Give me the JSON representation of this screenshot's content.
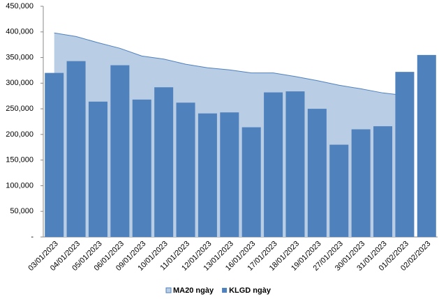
{
  "chart_data": {
    "type": "bar-area",
    "categories": [
      "03/01/2023",
      "04/01/2023",
      "05/01/2023",
      "06/01/2023",
      "09/01/2023",
      "10/01/2023",
      "11/01/2023",
      "12/01/2023",
      "13/01/2023",
      "16/01/2023",
      "17/01/2023",
      "18/01/2023",
      "19/01/2023",
      "27/01/2023",
      "30/01/2023",
      "31/01/2023",
      "01/02/2023",
      "02/02/2023"
    ],
    "series": [
      {
        "name": "MA20 ngày",
        "type": "area",
        "color": "#b9cde5",
        "line_color": "#4f81bd",
        "values": [
          398000,
          391000,
          379000,
          368000,
          353000,
          347000,
          337000,
          330000,
          326000,
          320000,
          320000,
          313000,
          305000,
          296000,
          289000,
          281000,
          276000,
          null
        ]
      },
      {
        "name": "KLGD ngày",
        "type": "bar",
        "color": "#4f81bd",
        "values": [
          320000,
          343000,
          264000,
          335000,
          268000,
          292000,
          262000,
          241000,
          243000,
          214000,
          282000,
          284000,
          250000,
          180000,
          210000,
          216000,
          322000,
          355000
        ]
      }
    ],
    "ylim": [
      0,
      450000
    ],
    "yticks": [
      {
        "value": 0,
        "label": "-"
      },
      {
        "value": 50000,
        "label": "50,000"
      },
      {
        "value": 100000,
        "label": "100,000"
      },
      {
        "value": 150000,
        "label": "150,000"
      },
      {
        "value": 200000,
        "label": "200,000"
      },
      {
        "value": 250000,
        "label": "250,000"
      },
      {
        "value": 300000,
        "label": "300,000"
      },
      {
        "value": 350000,
        "label": "350,000"
      },
      {
        "value": 400000,
        "label": "400,000"
      },
      {
        "value": 450000,
        "label": "450,000"
      }
    ],
    "legend": "bottom"
  }
}
